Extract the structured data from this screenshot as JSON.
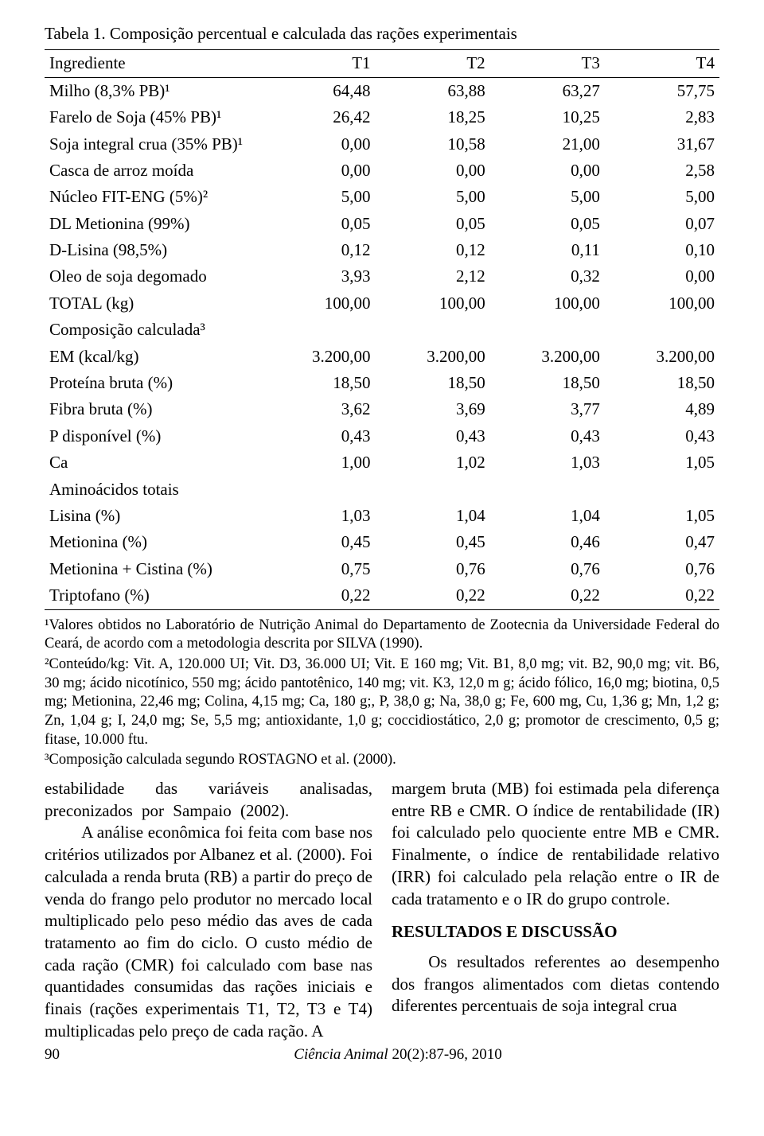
{
  "table": {
    "caption": "Tabela 1. Composição percentual e calculada das rações experimentais",
    "col_header_label": "Ingrediente",
    "col_headers": [
      "T1",
      "T2",
      "T3",
      "T4"
    ],
    "rows": [
      {
        "label": "Milho (8,3% PB)¹",
        "v": [
          "64,48",
          "63,88",
          "63,27",
          "57,75"
        ]
      },
      {
        "label": "Farelo de Soja (45% PB)¹",
        "v": [
          "26,42",
          "18,25",
          "10,25",
          "2,83"
        ]
      },
      {
        "label": "Soja integral crua (35% PB)¹",
        "v": [
          "0,00",
          "10,58",
          "21,00",
          "31,67"
        ]
      },
      {
        "label": "Casca de arroz moída",
        "v": [
          "0,00",
          "0,00",
          "0,00",
          "2,58"
        ]
      },
      {
        "label": "Núcleo FIT-ENG (5%)²",
        "v": [
          "5,00",
          "5,00",
          "5,00",
          "5,00"
        ]
      },
      {
        "label": "DL Metionina (99%)",
        "v": [
          "0,05",
          "0,05",
          "0,05",
          "0,07"
        ]
      },
      {
        "label": "D-Lisina (98,5%)",
        "v": [
          "0,12",
          "0,12",
          "0,11",
          "0,10"
        ]
      },
      {
        "label": "Oleo de soja degomado",
        "v": [
          "3,93",
          "2,12",
          "0,32",
          "0,00"
        ]
      },
      {
        "label": "TOTAL (kg)",
        "v": [
          "100,00",
          "100,00",
          "100,00",
          "100,00"
        ]
      },
      {
        "label": "Composição calculada³",
        "v": [
          "",
          "",
          "",
          ""
        ]
      },
      {
        "label": "EM (kcal/kg)",
        "v": [
          "3.200,00",
          "3.200,00",
          "3.200,00",
          "3.200,00"
        ]
      },
      {
        "label": "Proteína bruta (%)",
        "v": [
          "18,50",
          "18,50",
          "18,50",
          "18,50"
        ]
      },
      {
        "label": "Fibra bruta (%)",
        "v": [
          "3,62",
          "3,69",
          "3,77",
          "4,89"
        ]
      },
      {
        "label": "P disponível (%)",
        "v": [
          "0,43",
          "0,43",
          "0,43",
          "0,43"
        ]
      },
      {
        "label": "Ca",
        "v": [
          "1,00",
          "1,02",
          "1,03",
          "1,05"
        ]
      },
      {
        "label": "Aminoácidos totais",
        "v": [
          "",
          "",
          "",
          ""
        ]
      },
      {
        "label": "Lisina (%)",
        "v": [
          "1,03",
          "1,04",
          "1,04",
          "1,05"
        ]
      },
      {
        "label": "Metionina (%)",
        "v": [
          "0,45",
          "0,45",
          "0,46",
          "0,47"
        ]
      },
      {
        "label": "Metionina + Cistina (%)",
        "v": [
          "0,75",
          "0,76",
          "0,76",
          "0,76"
        ]
      },
      {
        "label": "Triptofano (%)",
        "v": [
          "0,22",
          "0,22",
          "0,22",
          "0,22"
        ]
      }
    ],
    "style": {
      "font_size_pt": 16,
      "border_color": "#000000",
      "background": "#ffffff",
      "col_widths_pct": [
        32,
        17,
        17,
        17,
        17
      ],
      "num_align": "right",
      "label_align": "left"
    }
  },
  "footnotes": {
    "f1": "¹Valores obtidos no Laboratório de Nutrição Animal do Departamento de Zootecnia da Universidade Federal do Ceará, de acordo com a metodologia descrita por SILVA (1990).",
    "f2": "²Conteúdo/kg: Vit. A, 120.000 UI; Vit. D3, 36.000 UI; Vit. E 160 mg; Vit. B1, 8,0 mg; vit. B2, 90,0 mg; vit. B6, 30 mg; ácido nicotínico, 550 mg; ácido pantotênico, 140 mg; vit. K3, 12,0 m g; ácido fólico, 16,0 mg; biotina, 0,5 mg; Metionina, 22,46 mg; Colina, 4,15 mg; Ca, 180 g;, P, 38,0 g; Na, 38,0 g; Fe, 600 mg, Cu, 1,36 g; Mn, 1,2 g; Zn, 1,04 g;  I, 24,0 mg;  Se, 5,5 mg; antioxidante, 1,0 g; coccidiostático, 2,0 g; promotor de crescimento, 0,5 g; fitase, 10.000 ftu.",
    "f3": "³Composição calculada segundo ROSTAGNO et al. (2000)."
  },
  "body": {
    "left": {
      "p1": "estabilidade das variáveis analisadas, preconizados por Sampaio (2002).",
      "p2": "A análise econômica foi feita com base nos critérios utilizados por Albanez et al. (2000). Foi calculada a renda bruta (RB) a partir do preço de venda do frango pelo produtor no mercado local multiplicado pelo peso médio das aves de cada tratamento ao fim do ciclo. O custo médio de cada ração (CMR) foi calculado com base nas quantidades consumidas das rações iniciais e finais (rações experimentais T1, T2, T3 e T4) multiplicadas pelo preço de cada ração. A"
    },
    "right": {
      "p1": "margem bruta (MB) foi estimada pela diferença entre RB e CMR. O índice de rentabilidade (IR) foi calculado pelo quociente entre MB e CMR. Finalmente, o índice de rentabilidade relativo (IRR) foi calculado pela relação entre o IR de cada tratamento e o IR do grupo controle.",
      "heading": "RESULTADOS E DISCUSSÃO",
      "p2": "Os resultados referentes ao desempenho dos frangos alimentados com dietas contendo diferentes percentuais de soja integral crua"
    }
  },
  "footer": {
    "page": "90",
    "citation_italic": "Ciência Animal",
    "citation_rest": " 20(2):87-96, 2010"
  }
}
